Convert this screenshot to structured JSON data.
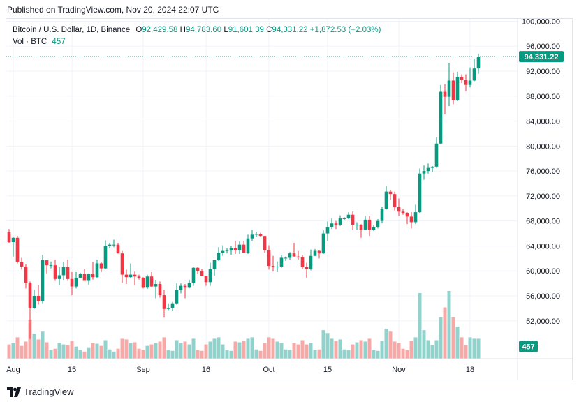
{
  "header": {
    "published_text": "Published on TradingView.com, Nov 20, 2024 22:07 UTC"
  },
  "legend": {
    "symbol_text": "Bitcoin / U.S. Dollar, 1D, Binance",
    "open_label": "O",
    "open_value": "92,429.58",
    "high_label": "H",
    "high_value": "94,783.60",
    "low_label": "L",
    "low_value": "91,601.39",
    "close_label": "C",
    "close_value": "94,331.22",
    "change_value": "+1,872.53 (+2.03%)",
    "volume_label": "Vol · BTC",
    "volume_value": "457"
  },
  "footer": {
    "brand_text": "TradingView",
    "brand_icon": "tradingview-logo-icon"
  },
  "colors": {
    "up": "#089981",
    "down": "#f23645",
    "vol_up": "#92d2cc",
    "vol_down": "#f7a9a7",
    "grid": "#f0f3fa",
    "axis_text": "#131722"
  },
  "chart_data": {
    "type": "candlestick",
    "title": "Bitcoin / U.S. Dollar, 1D, Binance",
    "y_axis": {
      "ticks": [
        52000,
        56000,
        60000,
        64000,
        68000,
        72000,
        76000,
        80000,
        84000,
        88000,
        92000,
        96000,
        100000
      ],
      "tick_labels": [
        "52,000.00",
        "56,000.00",
        "60,000.00",
        "64,000.00",
        "68,000.00",
        "72,000.00",
        "76,000.00",
        "80,000.00",
        "84,000.00",
        "88,000.00",
        "92,000.00",
        "96,000.00",
        "100,000.00"
      ],
      "ylim": [
        47500,
        100500
      ],
      "last_price": 94331.22,
      "last_price_label": "94,331.22",
      "volume_label": "457",
      "volume_label_level": 47900
    },
    "x_axis": {
      "tick_labels": [
        "Aug",
        "15",
        "Sep",
        "16",
        "Oct",
        "15",
        "Nov",
        "18"
      ],
      "tick_dates": [
        "2024-08-01",
        "2024-08-15",
        "2024-09-01",
        "2024-09-16",
        "2024-10-01",
        "2024-10-15",
        "2024-11-01",
        "2024-11-18"
      ]
    },
    "dates": [
      "2024-07-31",
      "2024-08-01",
      "2024-08-02",
      "2024-08-03",
      "2024-08-04",
      "2024-08-05",
      "2024-08-06",
      "2024-08-07",
      "2024-08-08",
      "2024-08-09",
      "2024-08-10",
      "2024-08-11",
      "2024-08-12",
      "2024-08-13",
      "2024-08-14",
      "2024-08-15",
      "2024-08-16",
      "2024-08-17",
      "2024-08-18",
      "2024-08-19",
      "2024-08-20",
      "2024-08-21",
      "2024-08-22",
      "2024-08-23",
      "2024-08-24",
      "2024-08-25",
      "2024-08-26",
      "2024-08-27",
      "2024-08-28",
      "2024-08-29",
      "2024-08-30",
      "2024-08-31",
      "2024-09-01",
      "2024-09-02",
      "2024-09-03",
      "2024-09-04",
      "2024-09-05",
      "2024-09-06",
      "2024-09-07",
      "2024-09-08",
      "2024-09-09",
      "2024-09-10",
      "2024-09-11",
      "2024-09-12",
      "2024-09-13",
      "2024-09-14",
      "2024-09-15",
      "2024-09-16",
      "2024-09-17",
      "2024-09-18",
      "2024-09-19",
      "2024-09-20",
      "2024-09-21",
      "2024-09-22",
      "2024-09-23",
      "2024-09-24",
      "2024-09-25",
      "2024-09-26",
      "2024-09-27",
      "2024-09-28",
      "2024-09-29",
      "2024-09-30",
      "2024-10-01",
      "2024-10-02",
      "2024-10-03",
      "2024-10-04",
      "2024-10-05",
      "2024-10-06",
      "2024-10-07",
      "2024-10-08",
      "2024-10-09",
      "2024-10-10",
      "2024-10-11",
      "2024-10-12",
      "2024-10-13",
      "2024-10-14",
      "2024-10-15",
      "2024-10-16",
      "2024-10-17",
      "2024-10-18",
      "2024-10-19",
      "2024-10-20",
      "2024-10-21",
      "2024-10-22",
      "2024-10-23",
      "2024-10-24",
      "2024-10-25",
      "2024-10-26",
      "2024-10-27",
      "2024-10-28",
      "2024-10-29",
      "2024-10-30",
      "2024-10-31",
      "2024-11-01",
      "2024-11-02",
      "2024-11-03",
      "2024-11-04",
      "2024-11-05",
      "2024-11-06",
      "2024-11-07",
      "2024-11-08",
      "2024-11-09",
      "2024-11-10",
      "2024-11-11",
      "2024-11-12",
      "2024-11-13",
      "2024-11-14",
      "2024-11-15",
      "2024-11-16",
      "2024-11-17",
      "2024-11-18",
      "2024-11-19",
      "2024-11-20"
    ],
    "ohlc": [
      [
        66200,
        66700,
        64500,
        64600
      ],
      [
        64600,
        65500,
        62300,
        65300
      ],
      [
        65300,
        65600,
        61200,
        61400
      ],
      [
        61400,
        62100,
        60200,
        60700
      ],
      [
        60700,
        61100,
        57200,
        58100
      ],
      [
        58100,
        58300,
        49100,
        54000
      ],
      [
        54000,
        57000,
        53900,
        56000
      ],
      [
        56000,
        57700,
        54600,
        55100
      ],
      [
        55100,
        62600,
        54800,
        61700
      ],
      [
        61700,
        61700,
        59600,
        60900
      ],
      [
        60900,
        61500,
        60400,
        60900
      ],
      [
        60900,
        61800,
        58400,
        58700
      ],
      [
        58700,
        60600,
        57700,
        59300
      ],
      [
        59300,
        61400,
        58500,
        60600
      ],
      [
        60600,
        61800,
        58400,
        58700
      ],
      [
        58700,
        59800,
        56100,
        57500
      ],
      [
        57500,
        59800,
        57200,
        58900
      ],
      [
        58900,
        59700,
        58800,
        59500
      ],
      [
        59500,
        60300,
        58400,
        58400
      ],
      [
        58400,
        59600,
        57800,
        59500
      ],
      [
        59500,
        61400,
        58600,
        59000
      ],
      [
        59000,
        61800,
        58800,
        61200
      ],
      [
        61200,
        61400,
        59800,
        60400
      ],
      [
        60400,
        64900,
        60300,
        64000
      ],
      [
        64000,
        64500,
        63600,
        64200
      ],
      [
        64200,
        65000,
        63800,
        64200
      ],
      [
        64200,
        64500,
        62800,
        62800
      ],
      [
        62800,
        63200,
        58100,
        59400
      ],
      [
        59400,
        60200,
        57900,
        59000
      ],
      [
        59000,
        61200,
        58800,
        59400
      ],
      [
        59400,
        59900,
        57700,
        59100
      ],
      [
        59100,
        59400,
        58600,
        58900
      ],
      [
        58900,
        59000,
        57200,
        57300
      ],
      [
        57300,
        59400,
        57100,
        59100
      ],
      [
        59100,
        59800,
        57400,
        57500
      ],
      [
        57500,
        58500,
        55600,
        57900
      ],
      [
        57900,
        58300,
        55700,
        56100
      ],
      [
        56100,
        56900,
        52500,
        53900
      ],
      [
        53900,
        54800,
        53700,
        54100
      ],
      [
        54100,
        55000,
        53600,
        54800
      ],
      [
        54800,
        58000,
        54600,
        57000
      ],
      [
        57000,
        58000,
        56400,
        57600
      ],
      [
        57600,
        57900,
        55600,
        57300
      ],
      [
        57300,
        58600,
        57200,
        58100
      ],
      [
        58100,
        60600,
        57600,
        60500
      ],
      [
        60500,
        60600,
        59500,
        60000
      ],
      [
        60000,
        60300,
        59200,
        59200
      ],
      [
        59200,
        59200,
        57600,
        58200
      ],
      [
        58200,
        61300,
        57600,
        60300
      ],
      [
        60300,
        61800,
        59200,
        61700
      ],
      [
        61700,
        63800,
        61600,
        62900
      ],
      [
        62900,
        64100,
        62400,
        63200
      ],
      [
        63200,
        63600,
        62800,
        63300
      ],
      [
        63300,
        64000,
        62600,
        63600
      ],
      [
        63600,
        64800,
        62700,
        63300
      ],
      [
        63300,
        64700,
        62700,
        64200
      ],
      [
        64200,
        64800,
        62900,
        62900
      ],
      [
        62900,
        65800,
        62700,
        65200
      ],
      [
        65200,
        66500,
        64800,
        65800
      ],
      [
        65800,
        66200,
        65400,
        65900
      ],
      [
        65900,
        66100,
        65400,
        65600
      ],
      [
        65600,
        65600,
        62900,
        63300
      ],
      [
        63300,
        64100,
        60200,
        60800
      ],
      [
        60800,
        62400,
        59900,
        60600
      ],
      [
        60600,
        61500,
        59800,
        60700
      ],
      [
        60700,
        62500,
        60500,
        62100
      ],
      [
        62100,
        62300,
        61600,
        62100
      ],
      [
        62100,
        63000,
        61800,
        62800
      ],
      [
        62800,
        64500,
        62300,
        62300
      ],
      [
        62300,
        63200,
        61800,
        62200
      ],
      [
        62200,
        62500,
        60300,
        60600
      ],
      [
        60600,
        61300,
        58900,
        60300
      ],
      [
        60300,
        63400,
        60100,
        62400
      ],
      [
        62400,
        63500,
        62400,
        63200
      ],
      [
        63200,
        63300,
        62000,
        62800
      ],
      [
        62800,
        66500,
        62700,
        66000
      ],
      [
        66000,
        67900,
        64800,
        67000
      ],
      [
        67000,
        68400,
        66700,
        67600
      ],
      [
        67600,
        68000,
        66700,
        67400
      ],
      [
        67400,
        68900,
        67200,
        68400
      ],
      [
        68400,
        68600,
        68100,
        68400
      ],
      [
        68400,
        69400,
        68300,
        69000
      ],
      [
        69000,
        69500,
        66600,
        67400
      ],
      [
        67400,
        67800,
        66600,
        67400
      ],
      [
        67400,
        67500,
        65300,
        66600
      ],
      [
        66600,
        68800,
        66500,
        68200
      ],
      [
        68200,
        68800,
        65600,
        66600
      ],
      [
        66600,
        67300,
        66400,
        67000
      ],
      [
        67000,
        68300,
        66800,
        68000
      ],
      [
        68000,
        70300,
        67600,
        69900
      ],
      [
        69900,
        73600,
        69800,
        72700
      ],
      [
        72700,
        72900,
        71400,
        72300
      ],
      [
        72300,
        72700,
        69700,
        70200
      ],
      [
        70200,
        71600,
        68800,
        69500
      ],
      [
        69500,
        69900,
        69000,
        69300
      ],
      [
        69300,
        69400,
        67500,
        68700
      ],
      [
        68700,
        69400,
        66800,
        67800
      ],
      [
        67800,
        70600,
        67500,
        69400
      ],
      [
        69400,
        76400,
        69300,
        75600
      ],
      [
        75600,
        76900,
        74600,
        76000
      ],
      [
        76000,
        77200,
        75600,
        76500
      ],
      [
        76500,
        76800,
        75900,
        76700
      ],
      [
        76700,
        81400,
        76500,
        80400
      ],
      [
        80400,
        89800,
        80300,
        88700
      ],
      [
        88700,
        89900,
        85100,
        87900
      ],
      [
        87900,
        93300,
        86400,
        90500
      ],
      [
        90500,
        91800,
        86700,
        87300
      ],
      [
        87300,
        91900,
        87200,
        91100
      ],
      [
        91100,
        91500,
        90100,
        90600
      ],
      [
        90600,
        91500,
        88800,
        89800
      ],
      [
        89800,
        92600,
        89400,
        90500
      ],
      [
        90500,
        94000,
        90400,
        92430
      ],
      [
        92430,
        94784,
        91601,
        94331
      ]
    ],
    "volume": [
      20,
      22,
      30,
      18,
      24,
      55,
      35,
      27,
      38,
      23,
      12,
      14,
      22,
      20,
      19,
      25,
      17,
      12,
      10,
      15,
      22,
      21,
      18,
      26,
      13,
      10,
      14,
      28,
      27,
      22,
      23,
      14,
      12,
      18,
      20,
      22,
      24,
      30,
      12,
      11,
      26,
      22,
      24,
      20,
      28,
      12,
      11,
      20,
      24,
      28,
      30,
      20,
      12,
      11,
      24,
      23,
      25,
      28,
      30,
      13,
      11,
      22,
      30,
      28,
      24,
      22,
      13,
      12,
      22,
      20,
      26,
      20,
      22,
      12,
      13,
      40,
      36,
      28,
      25,
      27,
      13,
      12,
      20,
      23,
      26,
      24,
      28,
      12,
      11,
      25,
      42,
      38,
      24,
      22,
      14,
      12,
      25,
      30,
      92,
      40,
      26,
      19,
      26,
      58,
      72,
      95,
      58,
      45,
      30,
      19,
      30,
      28,
      28
    ]
  }
}
